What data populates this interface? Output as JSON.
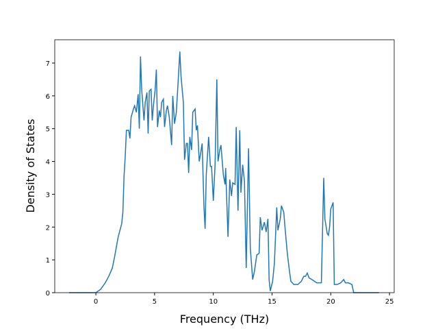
{
  "chart_data": {
    "type": "line",
    "x_label": "Frequency (THz)",
    "y_label": "Density of States",
    "xlim": [
      -3.5,
      25.4
    ],
    "ylim": [
      0,
      7.71
    ],
    "xticks": [
      0,
      5,
      10,
      15,
      20,
      25
    ],
    "yticks": [
      0,
      1,
      2,
      3,
      4,
      5,
      6,
      7
    ],
    "series": [
      {
        "color": "#1f77b4",
        "x": [
          -2.28,
          0,
          0.4,
          0.8,
          1.1,
          1.4,
          1.6,
          1.9,
          2.2,
          2.3,
          2.4,
          2.5,
          2.6,
          2.8,
          2.9,
          3.0,
          3.2,
          3.3,
          3.45,
          3.6,
          3.7,
          3.8,
          3.9,
          4.1,
          4.2,
          4.35,
          4.45,
          4.55,
          4.7,
          4.8,
          4.9,
          5.05,
          5.15,
          5.25,
          5.4,
          5.5,
          5.6,
          5.75,
          5.85,
          6.0,
          6.1,
          6.25,
          6.45,
          6.55,
          6.7,
          6.85,
          7.0,
          7.15,
          7.25,
          7.45,
          7.55,
          7.7,
          7.8,
          7.9,
          8.0,
          8.15,
          8.25,
          8.45,
          8.55,
          8.65,
          8.8,
          8.9,
          9.05,
          9.2,
          9.3,
          9.4,
          9.6,
          9.75,
          9.85,
          10.0,
          10.15,
          10.3,
          10.4,
          10.55,
          10.65,
          10.85,
          11.0,
          11.05,
          11.25,
          11.4,
          11.55,
          11.65,
          11.85,
          11.95,
          12.1,
          12.25,
          12.35,
          12.5,
          12.65,
          12.8,
          13.0,
          13.15,
          13.35,
          13.5,
          13.7,
          13.9,
          14.0,
          14.15,
          14.35,
          14.5,
          14.65,
          14.75,
          14.85,
          15.05,
          15.2,
          15.4,
          15.5,
          15.7,
          15.8,
          16.0,
          16.1,
          16.3,
          16.45,
          16.6,
          16.85,
          17.2,
          17.5,
          17.7,
          17.85,
          18.0,
          18.15,
          18.4,
          18.8,
          19.2,
          19.4,
          19.5,
          19.7,
          19.8,
          19.9,
          20.0,
          20.2,
          20.3,
          20.55,
          20.85,
          21.1,
          21.25,
          21.5,
          21.8,
          21.95,
          24.1
        ],
        "values": [
          0,
          0,
          0.1,
          0.3,
          0.5,
          0.75,
          1.1,
          1.7,
          2.1,
          2.45,
          3.55,
          4.15,
          4.95,
          4.95,
          4.7,
          5.35,
          5.6,
          5.7,
          5.5,
          6.05,
          5.0,
          7.2,
          6.2,
          5.25,
          5.8,
          6.1,
          4.85,
          6.15,
          6.2,
          5.25,
          5.7,
          6.2,
          6.8,
          5.05,
          5.55,
          5.35,
          5.8,
          5.9,
          5.05,
          5.55,
          5.7,
          5.35,
          4.5,
          6.0,
          5.15,
          5.5,
          6.4,
          7.35,
          6.6,
          5.8,
          4.05,
          4.55,
          4.55,
          3.65,
          4.75,
          4.35,
          5.5,
          5.6,
          4.95,
          5.1,
          4.0,
          4.2,
          4.55,
          2.65,
          1.95,
          3.6,
          4.75,
          3.85,
          3.85,
          2.8,
          3.9,
          6.5,
          4.0,
          4.35,
          4.5,
          3.6,
          3.3,
          3.8,
          1.7,
          3.45,
          2.95,
          3.35,
          3.3,
          5.05,
          2.5,
          4.95,
          3.05,
          3.9,
          3.4,
          0.75,
          4.4,
          1.35,
          0.4,
          0.65,
          1.15,
          1.2,
          2.3,
          1.9,
          2.15,
          1.85,
          2.25,
          0.4,
          0.05,
          0.35,
          0.9,
          2.6,
          1.9,
          2.25,
          2.65,
          2.45,
          2.0,
          1.2,
          0.75,
          0.35,
          0.25,
          0.25,
          0.35,
          0.5,
          0.5,
          0.6,
          0.45,
          0.4,
          0.3,
          0.3,
          3.5,
          2.25,
          1.8,
          1.75,
          2.0,
          2.55,
          2.75,
          0.25,
          0.25,
          0.3,
          0.4,
          0.3,
          0.3,
          0.25,
          0,
          0
        ]
      }
    ]
  }
}
